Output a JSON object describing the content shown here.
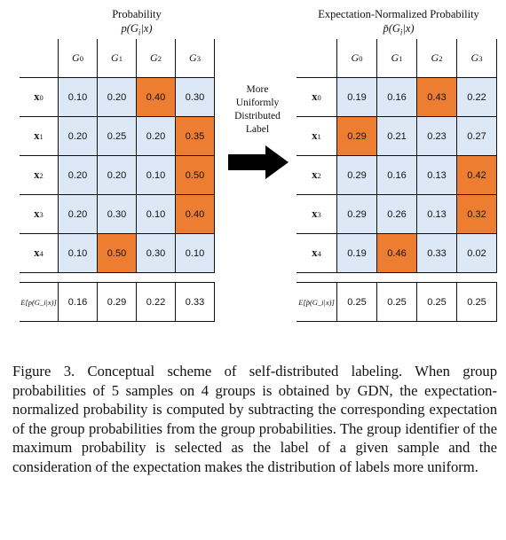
{
  "left_panel": {
    "title": "Probability",
    "subtitle": "p(G",
    "subtitle_tail": "|x)",
    "col_headers": [
      "G0",
      "G1",
      "G2",
      "G3"
    ],
    "row_labels": [
      "x0",
      "x1",
      "x2",
      "x3",
      "x4"
    ],
    "rows": [
      [
        "0.10",
        "0.20",
        "0.40",
        "0.30"
      ],
      [
        "0.20",
        "0.25",
        "0.20",
        "0.35"
      ],
      [
        "0.20",
        "0.20",
        "0.10",
        "0.50"
      ],
      [
        "0.20",
        "0.30",
        "0.10",
        "0.40"
      ],
      [
        "0.10",
        "0.50",
        "0.30",
        "0.10"
      ]
    ],
    "highlight": [
      2,
      3,
      3,
      3,
      1
    ],
    "expectation_label": "E[p(G_i|x)]",
    "expectation": [
      "0.16",
      "0.29",
      "0.22",
      "0.33"
    ]
  },
  "right_panel": {
    "title": "Expectation-Normalized Probability",
    "subtitle": "p̃(G",
    "subtitle_tail": "|x)",
    "col_headers": [
      "G0",
      "G1",
      "G2",
      "G3"
    ],
    "row_labels": [
      "x0",
      "x1",
      "x2",
      "x3",
      "x4"
    ],
    "rows": [
      [
        "0.19",
        "0.16",
        "0.43",
        "0.22"
      ],
      [
        "0.29",
        "0.21",
        "0.23",
        "0.27"
      ],
      [
        "0.29",
        "0.16",
        "0.13",
        "0.42"
      ],
      [
        "0.29",
        "0.26",
        "0.13",
        "0.32"
      ],
      [
        "0.19",
        "0.46",
        "0.33",
        "0.02"
      ]
    ],
    "highlight": [
      2,
      0,
      3,
      3,
      1
    ],
    "expectation_label": "E[p̃(G_i|x)]",
    "expectation": [
      "0.25",
      "0.25",
      "0.25",
      "0.25"
    ]
  },
  "arrow_label": [
    "More",
    "Uniformly",
    "Distributed",
    "Label"
  ],
  "caption": "Figure 3. Conceptual scheme of self-distributed labeling. When group probabilities of 5 samples on 4 groups is obtained by GDN, the expectation-normalized probability is computed by subtracting the corresponding expectation of the group probabilities from the group probabilities. The group identifier of the maximum probability is selected as the label of a given sample and the consideration of the expectation makes the distribution of labels more uniform.",
  "colors": {
    "cell_bg": "#dce8f6",
    "highlight": "#ed7d31",
    "arrow": "#000000"
  }
}
